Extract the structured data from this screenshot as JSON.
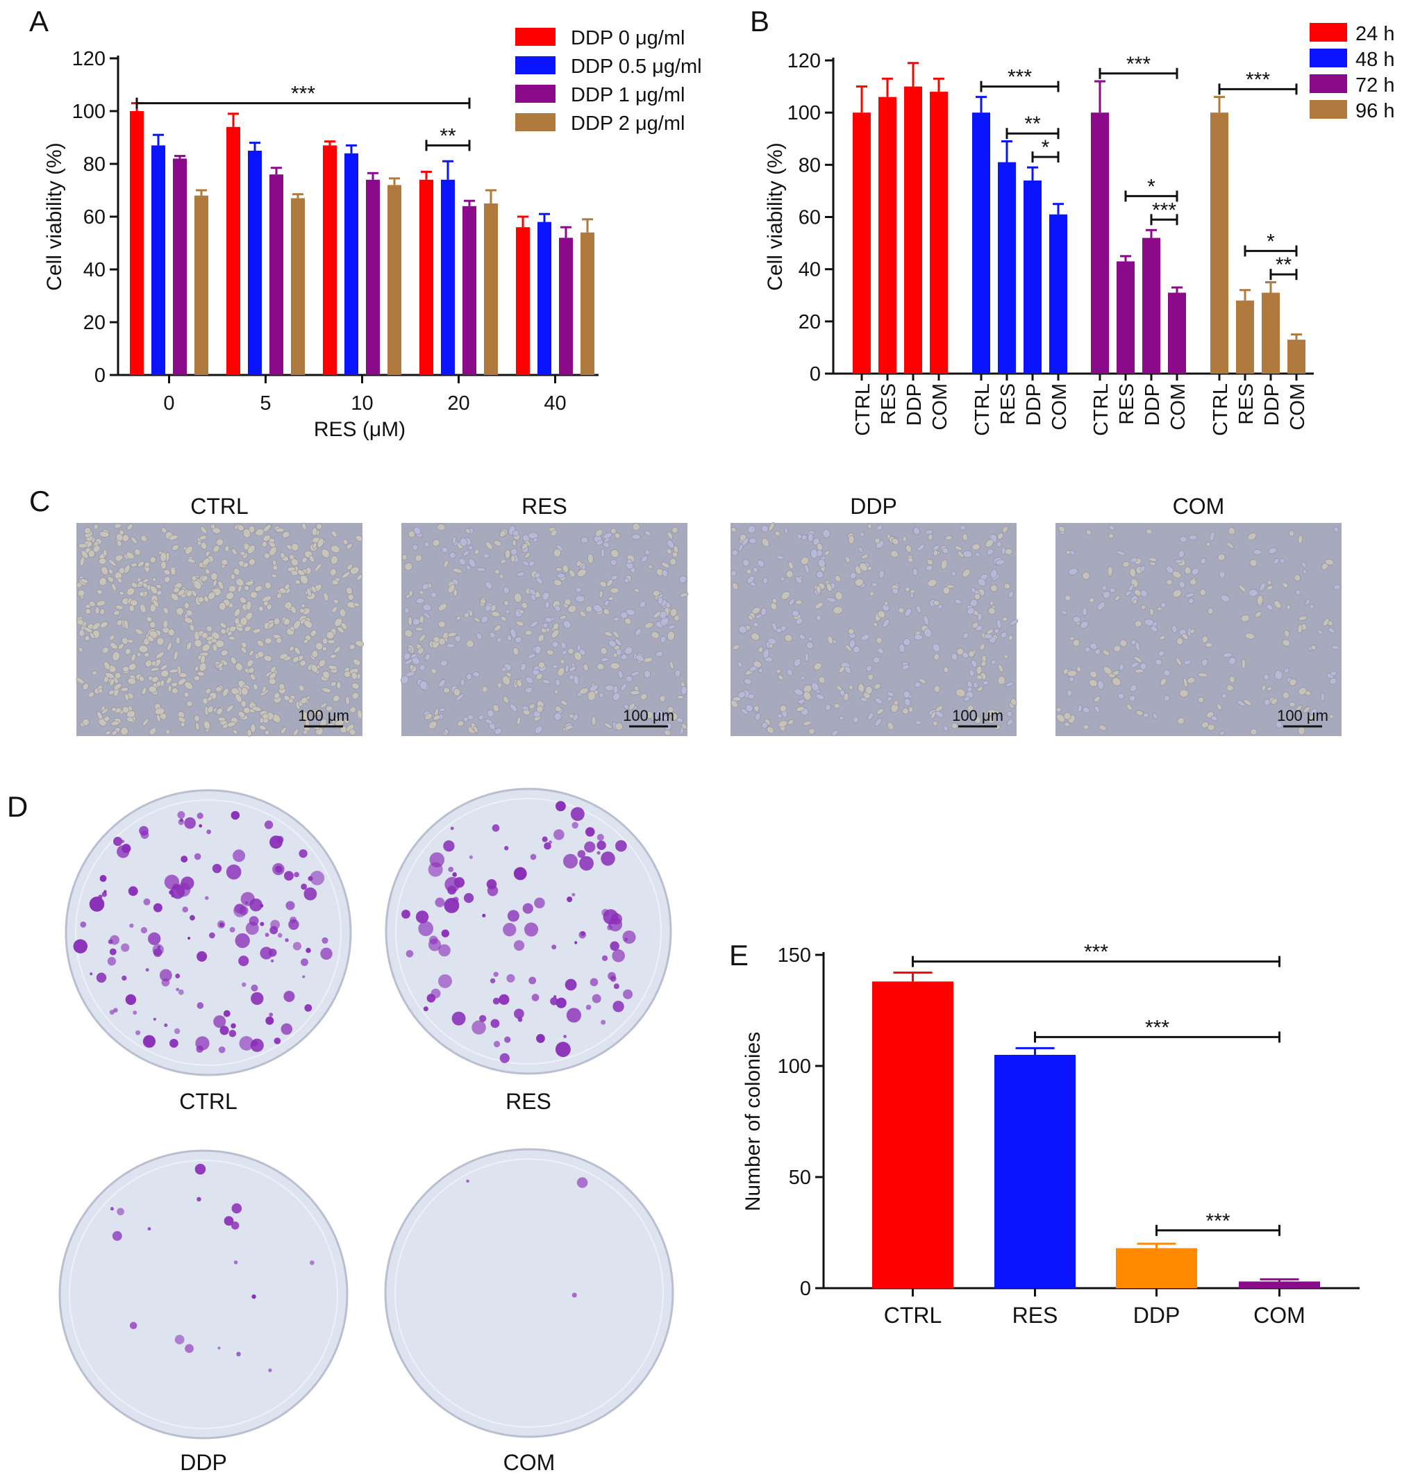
{
  "colors": {
    "red": "#ff0000",
    "blue": "#0a14ff",
    "purple": "#8a0a8a",
    "brown": "#b07a3e",
    "orange": "#ff8a00",
    "micro_bg": "#a7a9bd",
    "dish_bg": "#dde3ef",
    "colony": "#8a2fb8"
  },
  "panels": {
    "A": "A",
    "B": "B",
    "C": "C",
    "D": "D",
    "E": "E"
  },
  "chart_data": [
    {
      "id": "A",
      "type": "bar",
      "title": "",
      "xlabel": "RES (μM)",
      "ylabel": "Cell viability (%)",
      "ylim": [
        0,
        120
      ],
      "yticks": [
        0,
        20,
        40,
        60,
        80,
        100,
        120
      ],
      "categories": [
        "0",
        "5",
        "10",
        "20",
        "40"
      ],
      "legend": "top-right",
      "series": [
        {
          "name": "DDP 0 μg/ml",
          "color": "#ff0000",
          "values": [
            100,
            94,
            87,
            74,
            56
          ],
          "errors": [
            3,
            5,
            1.5,
            3,
            4
          ]
        },
        {
          "name": "DDP 0.5 μg/ml",
          "color": "#0a14ff",
          "values": [
            87,
            85,
            84,
            74,
            58
          ],
          "errors": [
            4,
            3,
            3,
            7,
            3
          ]
        },
        {
          "name": "DDP 1 μg/ml",
          "color": "#8a0a8a",
          "values": [
            82,
            76,
            74,
            64,
            52
          ],
          "errors": [
            1,
            2.5,
            2.5,
            2,
            4
          ]
        },
        {
          "name": "DDP 2 μg/ml",
          "color": "#b07a3e",
          "values": [
            68,
            67,
            72,
            65,
            54
          ],
          "errors": [
            2,
            1.5,
            2.5,
            5,
            5
          ]
        }
      ],
      "annotations": [
        {
          "label": "***",
          "from": [
            0,
            0
          ],
          "to": [
            3,
            2
          ],
          "y": 103
        },
        {
          "label": "**",
          "from": [
            3,
            0
          ],
          "to": [
            3,
            2
          ],
          "y": 87
        }
      ]
    },
    {
      "id": "B",
      "type": "bar",
      "title": "",
      "xlabel": "",
      "ylabel": "Cell viability (%)",
      "ylim": [
        0,
        120
      ],
      "yticks": [
        0,
        20,
        40,
        60,
        80,
        100,
        120
      ],
      "legend": "top-right",
      "groups": [
        {
          "name": "24 h",
          "color": "#ff0000",
          "categories": [
            "CTRL",
            "RES",
            "DDP",
            "COM"
          ],
          "values": [
            100,
            106,
            110,
            108
          ],
          "errors": [
            10,
            7,
            9,
            5
          ]
        },
        {
          "name": "48 h",
          "color": "#0a14ff",
          "categories": [
            "CTRL",
            "RES",
            "DDP",
            "COM"
          ],
          "values": [
            100,
            81,
            74,
            61
          ],
          "errors": [
            6,
            8,
            5,
            4
          ]
        },
        {
          "name": "72 h",
          "color": "#8a0a8a",
          "categories": [
            "CTRL",
            "RES",
            "DDP",
            "COM"
          ],
          "values": [
            100,
            43,
            52,
            31
          ],
          "errors": [
            12,
            2,
            3,
            2
          ]
        },
        {
          "name": "96 h",
          "color": "#b07a3e",
          "categories": [
            "CTRL",
            "RES",
            "DDP",
            "COM"
          ],
          "values": [
            100,
            28,
            31,
            13
          ],
          "errors": [
            6,
            4,
            4,
            2
          ]
        }
      ],
      "annotations": [
        {
          "label": "***",
          "group": 1,
          "from": 0,
          "to": 3,
          "y": 110
        },
        {
          "label": "**",
          "group": 1,
          "from": 1,
          "to": 3,
          "y": 92
        },
        {
          "label": "*",
          "group": 1,
          "from": 2,
          "to": 3,
          "y": 83
        },
        {
          "label": "***",
          "group": 2,
          "from": 0,
          "to": 3,
          "y": 115
        },
        {
          "label": "*",
          "group": 2,
          "from": 1,
          "to": 3,
          "y": 68
        },
        {
          "label": "***",
          "group": 2,
          "from": 2,
          "to": 3,
          "y": 59
        },
        {
          "label": "***",
          "group": 3,
          "from": 0,
          "to": 3,
          "y": 109
        },
        {
          "label": "*",
          "group": 3,
          "from": 1,
          "to": 3,
          "y": 47
        },
        {
          "label": "**",
          "group": 3,
          "from": 2,
          "to": 3,
          "y": 38
        }
      ]
    },
    {
      "id": "E",
      "type": "bar",
      "title": "",
      "xlabel": "",
      "ylabel": "Number of colonies",
      "ylim": [
        0,
        150
      ],
      "yticks": [
        0,
        50,
        100,
        150
      ],
      "categories": [
        "CTRL",
        "RES",
        "DDP",
        "COM"
      ],
      "colors": [
        "#ff0000",
        "#0a14ff",
        "#ff8a00",
        "#8a0a8a"
      ],
      "values": [
        138,
        105,
        18,
        3
      ],
      "errors": [
        4,
        3,
        2,
        1
      ],
      "annotations": [
        {
          "label": "***",
          "from": 0,
          "to": 3,
          "y": 147
        },
        {
          "label": "***",
          "from": 1,
          "to": 3,
          "y": 113
        },
        {
          "label": "***",
          "from": 2,
          "to": 3,
          "y": 26
        }
      ]
    }
  ],
  "micrographs": [
    {
      "label": "CTRL",
      "scalebar": "100 μm",
      "density": 620
    },
    {
      "label": "RES",
      "scalebar": "100 μm",
      "density": 420
    },
    {
      "label": "DDP",
      "scalebar": "100 μm",
      "density": 360
    },
    {
      "label": "COM",
      "scalebar": "100 μm",
      "density": 230
    }
  ],
  "dishes": [
    {
      "label": "CTRL",
      "colonies": 138
    },
    {
      "label": "RES",
      "colonies": 105
    },
    {
      "label": "DDP",
      "colonies": 18
    },
    {
      "label": "COM",
      "colonies": 3
    }
  ]
}
